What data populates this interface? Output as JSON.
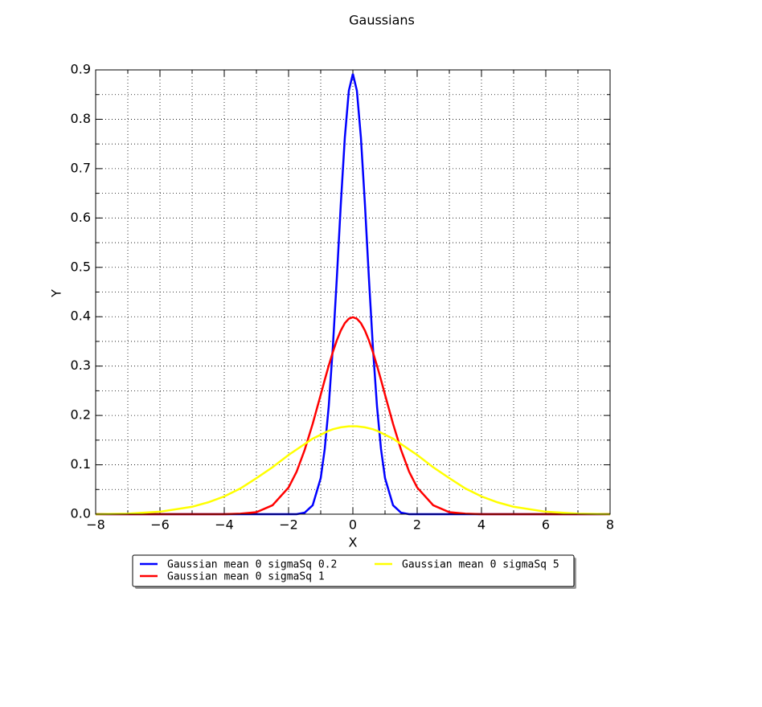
{
  "chart_data": {
    "type": "line",
    "title": "Gaussians",
    "xlabel": "X",
    "ylabel": "Y",
    "x": [
      -8,
      -7,
      -6,
      -5,
      -4.5,
      -4,
      -3.5,
      -3,
      -2.5,
      -2,
      -1.75,
      -1.5,
      -1.25,
      -1,
      -0.875,
      -0.75,
      -0.625,
      -0.5,
      -0.375,
      -0.25,
      -0.125,
      0,
      0.125,
      0.25,
      0.375,
      0.5,
      0.625,
      0.75,
      0.875,
      1,
      1.25,
      1.5,
      1.75,
      2,
      2.5,
      3,
      3.5,
      4,
      4.5,
      5,
      6,
      7,
      8
    ],
    "series": [
      {
        "name": "Gaussian mean 0 sigmaSq 0.2",
        "color": "#0000ff",
        "values": [
          0,
          0,
          0,
          0,
          0,
          0,
          0,
          0,
          0,
          0,
          0,
          0.003,
          0.018,
          0.073,
          0.132,
          0.219,
          0.336,
          0.477,
          0.628,
          0.763,
          0.858,
          0.892,
          0.858,
          0.763,
          0.628,
          0.477,
          0.336,
          0.219,
          0.132,
          0.073,
          0.018,
          0.003,
          0,
          0,
          0,
          0,
          0,
          0,
          0,
          0,
          0,
          0,
          0
        ]
      },
      {
        "name": "Gaussian mean 0 sigmaSq 1",
        "color": "#ff0000",
        "values": [
          0,
          0,
          0,
          0,
          0,
          0,
          0.001,
          0.004,
          0.018,
          0.054,
          0.086,
          0.13,
          0.183,
          0.242,
          0.272,
          0.301,
          0.328,
          0.352,
          0.372,
          0.387,
          0.396,
          0.399,
          0.396,
          0.387,
          0.372,
          0.352,
          0.328,
          0.301,
          0.272,
          0.242,
          0.183,
          0.13,
          0.086,
          0.054,
          0.018,
          0.004,
          0.001,
          0,
          0,
          0,
          0,
          0,
          0
        ]
      },
      {
        "name": "Gaussian mean 0 sigmaSq 5",
        "color": "#ffff00",
        "values": [
          0,
          0.001,
          0.005,
          0.015,
          0.024,
          0.036,
          0.052,
          0.073,
          0.095,
          0.12,
          0.131,
          0.142,
          0.153,
          0.161,
          0.165,
          0.169,
          0.172,
          0.174,
          0.176,
          0.177,
          0.178,
          0.178,
          0.178,
          0.177,
          0.176,
          0.174,
          0.172,
          0.169,
          0.165,
          0.161,
          0.153,
          0.142,
          0.131,
          0.12,
          0.095,
          0.073,
          0.052,
          0.036,
          0.024,
          0.015,
          0.005,
          0.001,
          0
        ]
      }
    ],
    "xlim": [
      -8,
      8
    ],
    "ylim": [
      0,
      0.9
    ],
    "xticks": [
      {
        "value": -8,
        "label": "−8"
      },
      {
        "value": -6,
        "label": "−6"
      },
      {
        "value": -4,
        "label": "−4"
      },
      {
        "value": -2,
        "label": "−2"
      },
      0,
      2,
      4,
      6,
      8
    ],
    "yticks": [
      {
        "value": 0,
        "label": "0.0"
      },
      0.1,
      0.2,
      0.3,
      0.4,
      0.5,
      0.6,
      0.7,
      0.8,
      0.9
    ],
    "xminor": [
      -7,
      -5,
      -3,
      -1,
      1,
      3,
      5,
      7
    ],
    "yminor": [
      0.05,
      0.15,
      0.25,
      0.35,
      0.45,
      0.55,
      0.65,
      0.75,
      0.85
    ],
    "grid": true,
    "legend": "lower center"
  }
}
